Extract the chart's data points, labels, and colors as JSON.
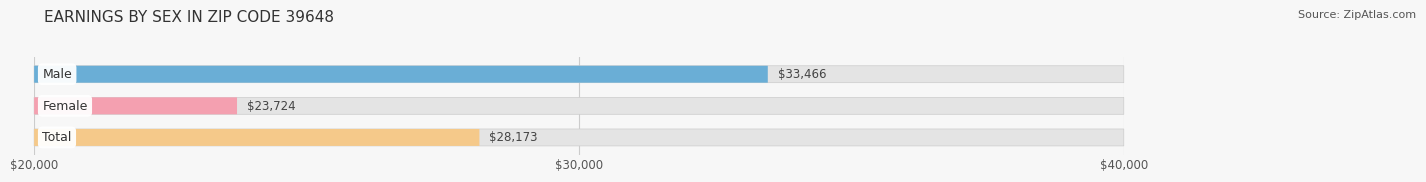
{
  "title": "EARNINGS BY SEX IN ZIP CODE 39648",
  "source": "Source: ZipAtlas.com",
  "categories": [
    "Male",
    "Female",
    "Total"
  ],
  "values": [
    33466,
    23724,
    28173
  ],
  "bar_colors": [
    "#6aaed6",
    "#f4a0b0",
    "#f5c98a"
  ],
  "value_label_colors": [
    "#ffffff",
    "#555555",
    "#555555"
  ],
  "xmin": 20000,
  "xmax": 40000,
  "xticks": [
    20000,
    30000,
    40000
  ],
  "xtick_labels": [
    "$20,000",
    "$30,000",
    "$40,000"
  ],
  "value_labels": [
    "$33,466",
    "$23,724",
    "$28,173"
  ],
  "bar_bg_color": "#e4e4e4",
  "fig_bg_color": "#f7f7f7",
  "title_fontsize": 11,
  "source_fontsize": 8,
  "bar_height": 0.52,
  "figsize": [
    14.06,
    1.96
  ]
}
